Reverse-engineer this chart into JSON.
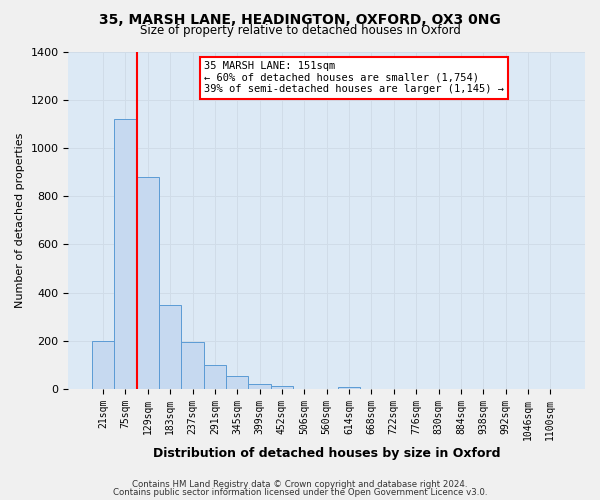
{
  "title": "35, MARSH LANE, HEADINGTON, OXFORD, OX3 0NG",
  "subtitle": "Size of property relative to detached houses in Oxford",
  "xlabel": "Distribution of detached houses by size in Oxford",
  "ylabel": "Number of detached properties",
  "footnote1": "Contains HM Land Registry data © Crown copyright and database right 2024.",
  "footnote2": "Contains public sector information licensed under the Open Government Licence v3.0.",
  "bin_labels": [
    "21sqm",
    "75sqm",
    "129sqm",
    "183sqm",
    "237sqm",
    "291sqm",
    "345sqm",
    "399sqm",
    "452sqm",
    "506sqm",
    "560sqm",
    "614sqm",
    "668sqm",
    "722sqm",
    "776sqm",
    "830sqm",
    "884sqm",
    "938sqm",
    "992sqm",
    "1046sqm",
    "1100sqm"
  ],
  "bar_heights": [
    200,
    1120,
    880,
    350,
    195,
    100,
    55,
    20,
    15,
    0,
    0,
    10,
    0,
    0,
    0,
    0,
    0,
    0,
    0,
    0,
    0
  ],
  "bar_color": "#c6d9f0",
  "bar_edge_color": "#5b9bd5",
  "vline_color": "red",
  "annotation_title": "35 MARSH LANE: 151sqm",
  "annotation_line1": "← 60% of detached houses are smaller (1,754)",
  "annotation_line2": "39% of semi-detached houses are larger (1,145) →",
  "ylim": [
    0,
    1400
  ],
  "yticks": [
    0,
    200,
    400,
    600,
    800,
    1000,
    1200,
    1400
  ],
  "grid_color": "#d0dce8",
  "background_color": "#dce9f5",
  "fig_background": "#f0f0f0"
}
